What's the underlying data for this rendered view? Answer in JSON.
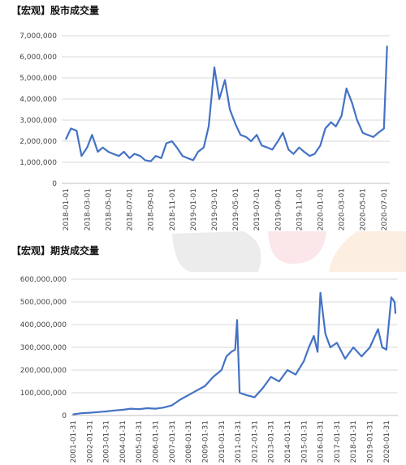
{
  "chart_data": [
    {
      "type": "line",
      "title": "【宏观】股市成交量",
      "ylim": [
        0,
        7000000
      ],
      "yticks": [
        "0",
        "1,000,000",
        "2,000,000",
        "3,000,000",
        "4,000,000",
        "5,000,000",
        "6,000,000",
        "7,000,000"
      ],
      "xticks": [
        "2018-01-01",
        "2018-03-01",
        "2018-05-01",
        "2018-07-01",
        "2018-09-01",
        "2018-11-01",
        "2019-01-01",
        "2019-03-01",
        "2019-05-01",
        "2019-07-01",
        "2019-09-01",
        "2019-11-01",
        "2020-01-01",
        "2020-03-01",
        "2020-05-01",
        "2020-07-01"
      ],
      "grid": true,
      "color": "#4472c4",
      "x": [
        "2018-01-01",
        "2018-01-15",
        "2018-02-01",
        "2018-02-15",
        "2018-03-01",
        "2018-03-15",
        "2018-04-01",
        "2018-04-15",
        "2018-05-01",
        "2018-05-15",
        "2018-06-01",
        "2018-06-15",
        "2018-07-01",
        "2018-07-15",
        "2018-08-01",
        "2018-08-15",
        "2018-09-01",
        "2018-09-15",
        "2018-10-01",
        "2018-10-15",
        "2018-11-01",
        "2018-11-15",
        "2018-12-01",
        "2018-12-15",
        "2019-01-01",
        "2019-01-15",
        "2019-02-01",
        "2019-02-15",
        "2019-03-01",
        "2019-03-15",
        "2019-04-01",
        "2019-04-15",
        "2019-05-01",
        "2019-05-15",
        "2019-06-01",
        "2019-06-15",
        "2019-07-01",
        "2019-07-15",
        "2019-08-01",
        "2019-08-15",
        "2019-09-01",
        "2019-09-15",
        "2019-10-01",
        "2019-10-15",
        "2019-11-01",
        "2019-11-15",
        "2019-12-01",
        "2019-12-15",
        "2020-01-01",
        "2020-01-15",
        "2020-02-01",
        "2020-02-15",
        "2020-03-01",
        "2020-03-15",
        "2020-04-01",
        "2020-04-15",
        "2020-05-01",
        "2020-05-15",
        "2020-06-01",
        "2020-06-15",
        "2020-07-01",
        "2020-07-10"
      ],
      "values": [
        2100000,
        2600000,
        2500000,
        1300000,
        1700000,
        2300000,
        1500000,
        1700000,
        1500000,
        1400000,
        1300000,
        1500000,
        1200000,
        1400000,
        1300000,
        1100000,
        1050000,
        1300000,
        1200000,
        1900000,
        2000000,
        1700000,
        1300000,
        1200000,
        1100000,
        1500000,
        1700000,
        2700000,
        5500000,
        4000000,
        4900000,
        3500000,
        2800000,
        2300000,
        2200000,
        2000000,
        2300000,
        1800000,
        1700000,
        1600000,
        2000000,
        2400000,
        1600000,
        1400000,
        1700000,
        1500000,
        1300000,
        1400000,
        1800000,
        2600000,
        2900000,
        2700000,
        3200000,
        4500000,
        3800000,
        3000000,
        2400000,
        2300000,
        2200000,
        2400000,
        2600000,
        6500000
      ]
    },
    {
      "type": "line",
      "title": "【宏观】期货成交量",
      "ylim": [
        0,
        600000000
      ],
      "yticks": [
        "0",
        "100,000,000",
        "200,000,000",
        "300,000,000",
        "400,000,000",
        "500,000,000",
        "600,000,000"
      ],
      "xticks": [
        "2001-01-31",
        "2002-01-31",
        "2003-01-31",
        "2004-01-31",
        "2005-01-31",
        "2006-01-31",
        "2007-01-31",
        "2008-01-31",
        "2009-01-31",
        "2010-01-31",
        "2011-01-31",
        "2012-01-31",
        "2013-01-31",
        "2014-01-31",
        "2015-01-31",
        "2016-01-31",
        "2017-01-31",
        "2018-01-31",
        "2019-01-31",
        "2020-01-31"
      ],
      "grid": true,
      "color": "#4472c4",
      "x": [
        2001.0,
        2001.5,
        2002.0,
        2002.5,
        2003.0,
        2003.5,
        2004.0,
        2004.5,
        2005.0,
        2005.5,
        2006.0,
        2006.5,
        2007.0,
        2007.5,
        2008.0,
        2008.5,
        2009.0,
        2009.5,
        2010.0,
        2010.3,
        2010.6,
        2010.83,
        2010.95,
        2011.1,
        2011.5,
        2012.0,
        2012.5,
        2013.0,
        2013.5,
        2014.0,
        2014.5,
        2015.0,
        2015.3,
        2015.6,
        2015.83,
        2016.0,
        2016.3,
        2016.6,
        2017.0,
        2017.5,
        2018.0,
        2018.5,
        2019.0,
        2019.5,
        2019.75,
        2020.0,
        2020.3,
        2020.5,
        2020.55
      ],
      "values": [
        5000000,
        10000000,
        12000000,
        15000000,
        18000000,
        22000000,
        25000000,
        30000000,
        28000000,
        32000000,
        30000000,
        35000000,
        45000000,
        70000000,
        90000000,
        110000000,
        130000000,
        170000000,
        200000000,
        260000000,
        280000000,
        290000000,
        420000000,
        100000000,
        90000000,
        80000000,
        120000000,
        170000000,
        150000000,
        200000000,
        180000000,
        240000000,
        300000000,
        350000000,
        280000000,
        540000000,
        360000000,
        300000000,
        320000000,
        250000000,
        300000000,
        260000000,
        300000000,
        380000000,
        300000000,
        290000000,
        520000000,
        500000000,
        450000000
      ]
    }
  ]
}
